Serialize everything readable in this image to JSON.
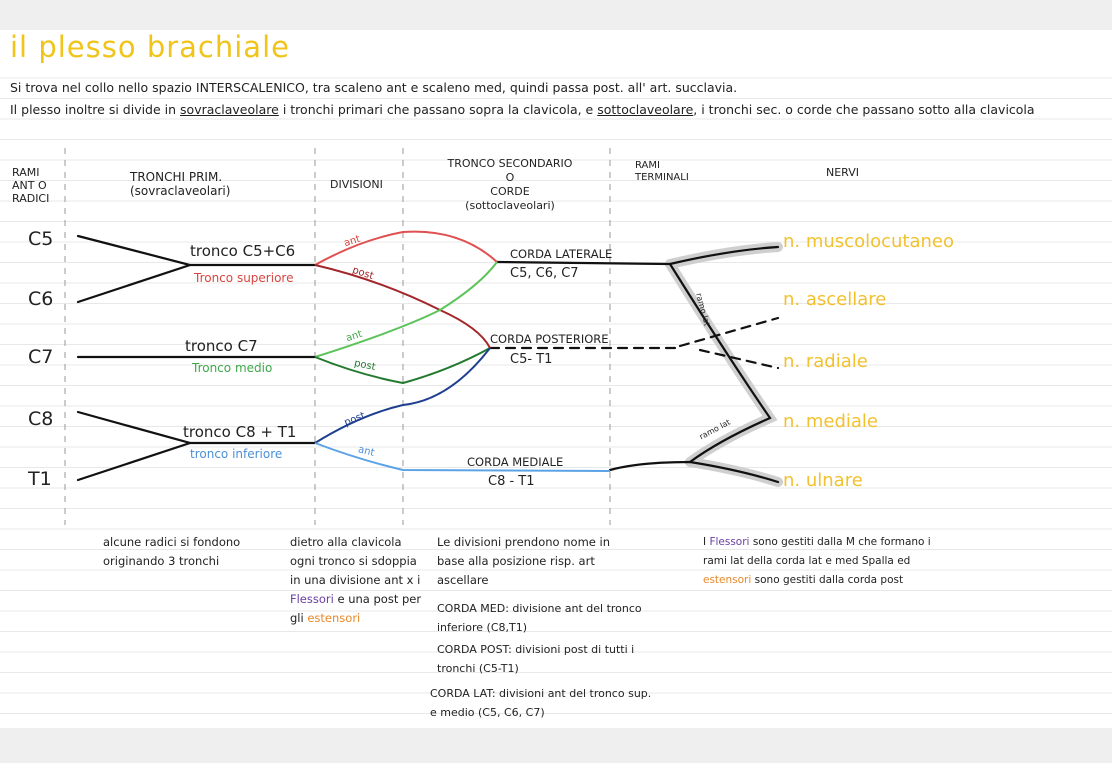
{
  "title": "il plesso brachiale",
  "intro": {
    "line_1": "Si trova nel collo nello spazio INTERSCALENICO, tra scaleno ant e scaleno med, quindi passa post. all' art. succlavia.",
    "line_2": [
      "Il plesso inoltre si divide in",
      "sovraclaveolare",
      "i tronchi primari che passano sopra la clavicola, e",
      "sottoclaveolare",
      ", i tronchi sec. o corde che passano sotto alla clavicola"
    ]
  },
  "headers": {
    "roots": [
      "RAMI",
      "ANT O",
      "RADICI"
    ],
    "trunks": [
      "TRONCHI PRIM.",
      "(sovraclaveolari)"
    ],
    "divisions": "DIVISIONI",
    "cords": [
      "TRONCO SECONDARIO",
      "O",
      "CORDE",
      "(sottoclaveolari)"
    ],
    "terminal": [
      "RAMI",
      "TERMINALI"
    ],
    "nerves": "NERVI"
  },
  "roots": [
    "C5",
    "C6",
    "C7",
    "C8",
    "T1"
  ],
  "trunks": [
    {
      "name": "tronco C5+C6",
      "subtitle": "Tronco superiore"
    },
    {
      "name": "tronco C7",
      "subtitle": "Tronco medio"
    },
    {
      "name": "tronco C8 + T1",
      "subtitle": "tronco inferiore"
    }
  ],
  "divisions": [
    "ant",
    "post",
    "ant",
    "post",
    "post",
    "ant"
  ],
  "cords": [
    {
      "name": "CORDA LATERALE",
      "roots": "C5, C6, C7"
    },
    {
      "name": "CORDA POSTERIORE",
      "roots": "C5- T1"
    },
    {
      "name": "CORDA MEDIALE",
      "roots": "C8 - T1"
    }
  ],
  "terminal_branches": [
    "ramo lat",
    "ramo lat"
  ],
  "nerves": [
    "n. muscolocutaneo",
    "n. ascellare",
    "n. radiale",
    "n. mediale",
    "n. ulnare"
  ],
  "notes": {
    "col_1": "alcune radici si fondono originando 3 tronchi",
    "col_2": [
      "dietro alla clavicola ogni tronco si sdoppia in una divisione ant x i",
      "Flessori",
      "e una post per gli",
      "estensori"
    ],
    "col_3": [
      "Le divisioni prendono nome in base alla posizione risp. art ascellare",
      "CORDA MED: divisione ant del tronco inferiore (C8,T1)",
      "CORDA POST: divisioni post di tutti i tronchi (C5-T1)",
      "CORDA LAT: divisioni ant del tronco sup. e medio (C5, C6, C7)"
    ],
    "col_4": [
      "I",
      "Flessori",
      "sono gestiti dalla M che formano i rami lat della corda lat e med Spalla ed",
      "estensori",
      "sono gestiti dalla corda post"
    ]
  }
}
